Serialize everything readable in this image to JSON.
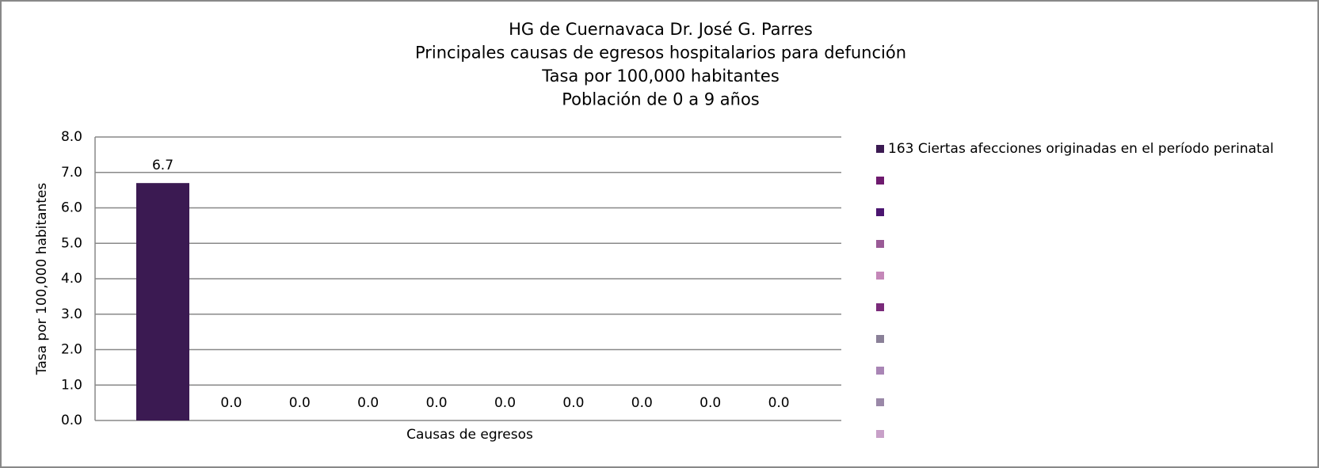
{
  "chart_data": {
    "type": "bar",
    "title": [
      "HG de Cuernavaca Dr. José G. Parres",
      "Principales causas de egresos hospitalarios para defunción",
      "Tasa por 100,000 habitantes",
      "Población de 0 a 9 años"
    ],
    "y_label": "Tasa por 100,000 habitantes",
    "x_label": "Causas de egresos",
    "categories": [
      null
    ],
    "series": [
      {
        "name": "163 Ciertas afecciones originadas en el período perinatal",
        "color": "#3b1a52",
        "values": [
          6.7
        ],
        "value_labels": [
          "6.7"
        ]
      },
      {
        "name": null,
        "color": "#6e1a6e",
        "values": [
          0
        ],
        "value_labels": [
          "0.0"
        ]
      },
      {
        "name": null,
        "color": "#4b1570",
        "values": [
          0
        ],
        "value_labels": [
          "0.0"
        ]
      },
      {
        "name": null,
        "color": "#9a5a96",
        "values": [
          0
        ],
        "value_labels": [
          "0.0"
        ]
      },
      {
        "name": null,
        "color": "#c487b8",
        "values": [
          0
        ],
        "value_labels": [
          "0.0"
        ]
      },
      {
        "name": null,
        "color": "#7a2a7a",
        "values": [
          0
        ],
        "value_labels": [
          "0.0"
        ]
      },
      {
        "name": null,
        "color": "#8a8098",
        "values": [
          0
        ],
        "value_labels": [
          "0.0"
        ]
      },
      {
        "name": null,
        "color": "#a985b5",
        "values": [
          0
        ],
        "value_labels": [
          "0.0"
        ]
      },
      {
        "name": null,
        "color": "#9a88a8",
        "values": [
          0
        ],
        "value_labels": [
          "0.0"
        ]
      },
      {
        "name": null,
        "color": "#c8a0c8",
        "values": [
          0
        ],
        "value_labels": [
          "0.0"
        ]
      }
    ],
    "ylim": [
      0,
      8
    ],
    "yticks": [
      {
        "value": 0,
        "label": "0.0"
      },
      {
        "value": 1,
        "label": "1.0"
      },
      {
        "value": 2,
        "label": "2.0"
      },
      {
        "value": 3,
        "label": "3.0"
      },
      {
        "value": 4,
        "label": "4.0"
      },
      {
        "value": 5,
        "label": "5.0"
      },
      {
        "value": 6,
        "label": "6.0"
      },
      {
        "value": 7,
        "label": "7.0"
      },
      {
        "value": 8,
        "label": "8.0"
      }
    ],
    "grid": true,
    "legend": "right"
  }
}
